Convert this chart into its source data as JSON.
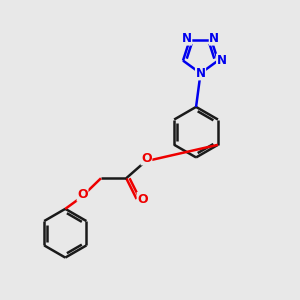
{
  "background_color": "#e8e8e8",
  "bond_color": "#1a1a1a",
  "nitrogen_color": "#0000ee",
  "oxygen_color": "#ee0000",
  "bond_width": 1.8,
  "dpi": 100,
  "figsize": [
    3.0,
    3.0
  ],
  "xlim": [
    0,
    10
  ],
  "ylim": [
    0,
    10
  ]
}
